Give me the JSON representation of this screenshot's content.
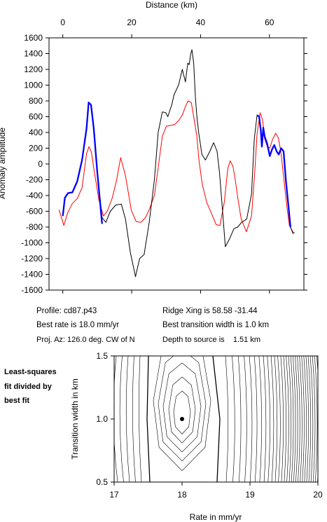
{
  "chart_data": [
    {
      "type": "line",
      "xlabel": "Distance (km)",
      "ylabel": "Anomaly amplitude",
      "xlim": [
        -4,
        70
      ],
      "ylim": [
        -1600,
        1600
      ],
      "x_ticks": [
        "0",
        "20",
        "40",
        "60"
      ],
      "x_tick_values": [
        0,
        20,
        40,
        60
      ],
      "y_ticks": [
        "1600",
        "1400",
        "1200",
        "1000",
        "800",
        "600",
        "400",
        "200",
        "0",
        "-200",
        "-400",
        "-600",
        "-800",
        "-1000",
        "-1200",
        "-1400",
        "-1600"
      ],
      "y_tick_values": [
        1600,
        1400,
        1200,
        1000,
        800,
        600,
        400,
        200,
        0,
        -200,
        -400,
        -600,
        -800,
        -1000,
        -1200,
        -1400,
        -1600
      ],
      "series": [
        {
          "color": "#000000",
          "x": [
            0,
            0.6,
            1.5,
            2.8,
            4.2,
            5.6,
            6.9,
            7.5,
            8.2,
            9,
            10,
            11.4,
            12.5,
            13.8,
            15.4,
            17,
            18.2,
            19.6,
            21.1,
            22.3,
            23.6,
            25.1,
            26.6,
            27.7,
            28.9,
            29.9,
            30.5,
            31.7,
            32.3,
            33.6,
            34.7,
            35.6,
            36.3,
            36.7,
            37.1,
            37.5,
            38,
            38.5,
            38.9,
            39.5,
            40.4,
            41.4,
            42.7,
            43.8,
            44.8,
            45.5,
            46.2,
            47.2,
            48.4,
            49.7,
            50.8,
            51.9,
            53.4,
            54.8,
            55.6,
            56.4,
            57,
            57.5,
            57.8,
            58.2,
            58.6,
            59.3,
            60.1,
            60.7,
            61.4,
            62.1,
            62.7,
            63.4,
            64.1,
            64.8,
            65.5,
            66.1,
            66.8,
            67.3
          ],
          "y": [
            -660,
            -430,
            -370,
            -360,
            -220,
            50,
            450,
            780,
            750,
            450,
            -100,
            -680,
            -740,
            -600,
            -520,
            -510,
            -700,
            -1120,
            -1430,
            -1200,
            -1150,
            -740,
            -200,
            400,
            660,
            650,
            600,
            760,
            880,
            1000,
            1200,
            1040,
            1280,
            1260,
            1390,
            1450,
            1280,
            840,
            620,
            380,
            120,
            50,
            160,
            270,
            160,
            -110,
            -490,
            -1050,
            -950,
            -820,
            -800,
            -740,
            -700,
            -380,
            320,
            620,
            600,
            420,
            220,
            460,
            350,
            260,
            100,
            180,
            240,
            160,
            120,
            200,
            160,
            -220,
            -530,
            -800,
            -880,
            -870
          ]
        },
        {
          "color": "#0000ff",
          "x": [
            0,
            0.6,
            1.5,
            2.8,
            4.2,
            5.6,
            6.9,
            7.5,
            8.2,
            9,
            10,
            11.4,
            56.4,
            57,
            57.5,
            57.8,
            58.2,
            58.6,
            59.3,
            60.1,
            60.7,
            61.4,
            62.1,
            62.7,
            63.4,
            64.1,
            64.8,
            65.5,
            66.1
          ],
          "y": [
            -660,
            -430,
            -370,
            -360,
            -220,
            50,
            450,
            780,
            750,
            450,
            -100,
            -760,
            620,
            600,
            420,
            220,
            460,
            350,
            260,
            100,
            180,
            240,
            160,
            120,
            200,
            160,
            -220,
            -530,
            -800
          ],
          "breaks_after": [
            11
          ]
        },
        {
          "color": "#ff0000",
          "x": [
            -1.1,
            0.3,
            1.4,
            2.8,
            4.2,
            5.6,
            6.9,
            7.6,
            8.3,
            9.1,
            10.5,
            11.8,
            12.9,
            14.3,
            15.6,
            16.8,
            18.2,
            19.9,
            21.3,
            22.7,
            24,
            25.1,
            26.6,
            27.7,
            28.9,
            30.1,
            31.4,
            32.5,
            33.6,
            34.7,
            35.6,
            36.4,
            37.3,
            38,
            38.9,
            39.5,
            40.5,
            41.8,
            43.2,
            44.5,
            45.6,
            46.9,
            47.9,
            48.6,
            49.4,
            50.1,
            50.8,
            51.8,
            53.3,
            54.8,
            55.7,
            56.4,
            57.3,
            58,
            58.6,
            59.3,
            60.1,
            60.9,
            61.8,
            62.6,
            63.3,
            64.1,
            65,
            65.8,
            66.9
          ],
          "y": [
            -580,
            -780,
            -620,
            -500,
            -440,
            -300,
            130,
            220,
            150,
            -80,
            -460,
            -660,
            -600,
            -440,
            -210,
            80,
            -150,
            -590,
            -730,
            -740,
            -680,
            -580,
            -400,
            -50,
            350,
            480,
            490,
            500,
            550,
            620,
            730,
            800,
            780,
            600,
            360,
            60,
            -260,
            -490,
            -630,
            -770,
            -780,
            -480,
            -60,
            40,
            -30,
            -210,
            -430,
            -700,
            -860,
            -660,
            -120,
            380,
            650,
            560,
            320,
            230,
            200,
            310,
            390,
            330,
            160,
            -160,
            -520,
            -780,
            -870
          ]
        }
      ]
    },
    {
      "type": "contour",
      "xlabel": "Rate in mm/yr",
      "ylabel": "Transition width in km",
      "xlim": [
        17,
        20
      ],
      "ylim": [
        0.5,
        1.5
      ],
      "x_ticks": [
        "17",
        "18",
        "19",
        "20"
      ],
      "x_tick_values": [
        17,
        18,
        19,
        20
      ],
      "y_ticks": [
        "1.5",
        "1.0",
        "0.5"
      ],
      "y_tick_values": [
        1.5,
        1.0,
        0.5
      ],
      "best_fit_point": {
        "x": 18.0,
        "y": 1.0
      }
    }
  ],
  "info": {
    "profile": "Profile: cd87.p43",
    "ridge": "Ridge Xing is 58.58 -31.44",
    "rate": "Best rate is 18.0 mm/yr",
    "width": "Best transition width is 1.0 km",
    "azimuth": "Proj. Az: 126.0 deg. CW of N",
    "depth": "Depth to source is    1.51 km"
  },
  "side_label": [
    "Least-squares",
    "fit divided by",
    "best fit"
  ]
}
